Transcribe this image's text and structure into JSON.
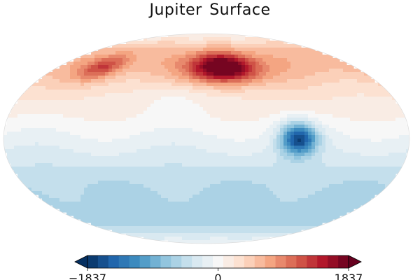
{
  "chart_data": {
    "type": "heatmap",
    "title": "Jupiter  Surface",
    "projection": "mollweide",
    "colormap": "RdBu_r",
    "colormap_stops": [
      "#053061",
      "#2166ac",
      "#4393c3",
      "#92c5de",
      "#d1e5f0",
      "#f7f7f7",
      "#fddbc7",
      "#f4a582",
      "#d6604d",
      "#b2182b",
      "#67001f"
    ],
    "levels": 25,
    "vmin": -1837,
    "vmax": 1837,
    "colorbar": {
      "extend": "both",
      "ticks": [
        -1837,
        0,
        1837
      ],
      "tick_labels": [
        "−1837",
        "0",
        "1837"
      ],
      "orientation": "horizontal",
      "placement": "bottom"
    },
    "field": {
      "units": "value",
      "lon_range": [
        -180,
        180
      ],
      "lat_range": [
        -90,
        90
      ],
      "features": [
        {
          "kind": "zonal-band",
          "lat": 60,
          "width": 22,
          "value": 600
        },
        {
          "kind": "zonal-band",
          "lat": 30,
          "width": 25,
          "value": 150
        },
        {
          "kind": "zonal-band",
          "lat": -5,
          "width": 18,
          "value": -120
        },
        {
          "kind": "zonal-band",
          "lat": -30,
          "width": 20,
          "value": -380
        },
        {
          "kind": "zonal-band",
          "lat": -60,
          "width": 22,
          "value": -560
        },
        {
          "kind": "blob",
          "lon": 20,
          "lat": 52,
          "sigma_lon": 38,
          "sigma_lat": 12,
          "value": 1600
        },
        {
          "kind": "blob",
          "lon": -125,
          "lat": 52,
          "sigma_lon": 22,
          "sigma_lat": 10,
          "value": 700
        },
        {
          "kind": "blob",
          "lon": 82,
          "lat": 0,
          "sigma_lon": 16,
          "sigma_lat": 11,
          "value": -1550
        },
        {
          "kind": "blob",
          "lon": -30,
          "lat": 30,
          "sigma_lon": 35,
          "sigma_lat": 12,
          "value": -200
        }
      ]
    }
  }
}
